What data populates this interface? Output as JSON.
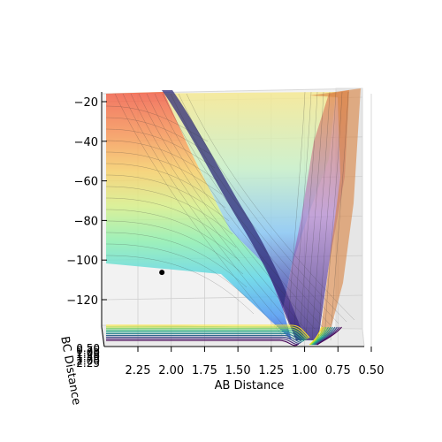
{
  "chart_data": {
    "type": "surface3d",
    "title": "",
    "xlabel": "AB Distance",
    "ylabel": "BC Distance",
    "zlabel": "",
    "x_ticks": [
      "2.25",
      "2.00",
      "1.75",
      "1.50",
      "1.25",
      "1.00",
      "0.75",
      "0.50"
    ],
    "y_ticks": [
      "0.50",
      "0.75",
      "1.00",
      "1.25",
      "1.50",
      "1.75",
      "2.00",
      "2.25"
    ],
    "z_ticks": [
      "−20",
      "−40",
      "−60",
      "−80",
      "−100",
      "−120"
    ],
    "x_range": [
      0.5,
      2.4
    ],
    "z_range": [
      -140,
      -15
    ],
    "colormap": "jet (surface) / viridis (contours on floor)",
    "grid": true,
    "marked_point": {
      "ab_distance": 2.07,
      "energy": -104
    }
  }
}
